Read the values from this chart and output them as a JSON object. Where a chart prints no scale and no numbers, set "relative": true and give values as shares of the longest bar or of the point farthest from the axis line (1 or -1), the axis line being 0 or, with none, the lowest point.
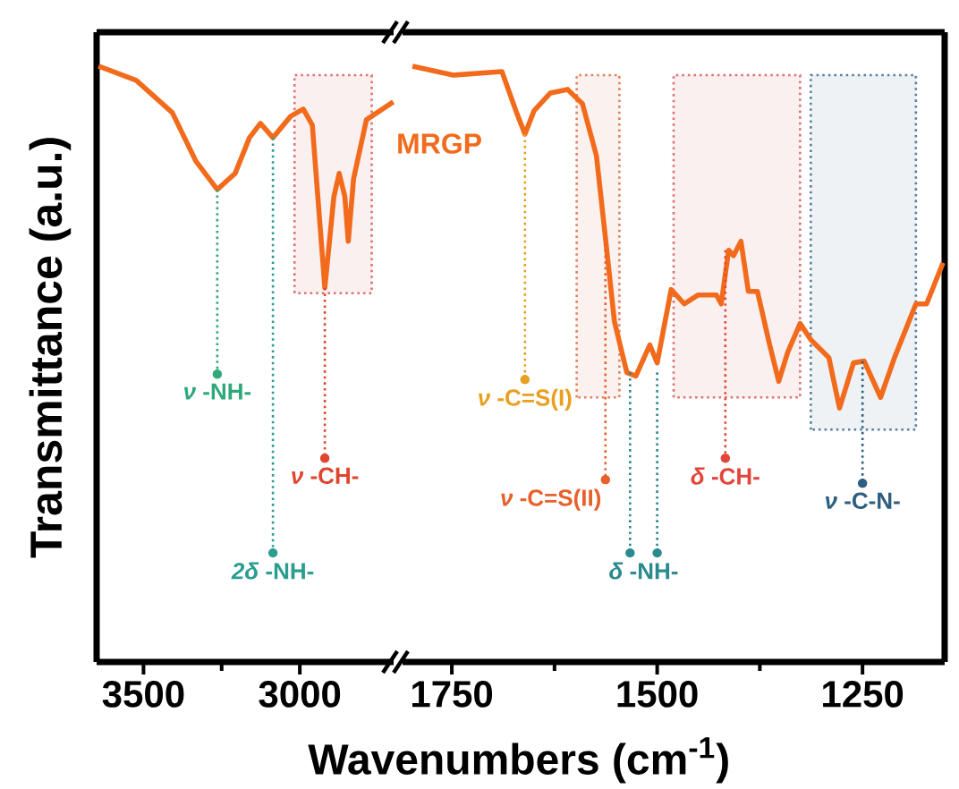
{
  "chart_data": [
    {
      "type": "line",
      "ylabel": "Transmittance (a.u.)",
      "xlim": [
        3650,
        2700
      ],
      "xticks": [
        3500,
        {
          "value": 3250,
          "label": null
        },
        3000
      ],
      "relative": true,
      "tick_labels": "x",
      "series": [
        {
          "color": "#f26b1d",
          "x": [
            3644,
            3523,
            3408,
            3333,
            3264,
            3207,
            3161,
            3126,
            3086,
            3029,
            2989,
            2960,
            2920,
            2891,
            2874,
            2856,
            2845,
            2828,
            2787,
            2701
          ],
          "values": [
            1,
            0.976,
            0.922,
            0.841,
            0.793,
            0.82,
            0.88,
            0.904,
            0.88,
            0.916,
            0.928,
            0.901,
            0.628,
            0.781,
            0.82,
            0.781,
            0.706,
            0.811,
            0.91,
            0.94
          ]
        }
      ],
      "bands": [
        {
          "axis": "x",
          "from": 3017,
          "to": 2770,
          "color": "#e07070"
        }
      ],
      "annotations": [
        {
          "text": "*ν* -NH-",
          "x": 3264,
          "y": 0.793
        },
        {
          "text": "*2δ* -NH-",
          "x": 3086,
          "y": 0.88
        },
        {
          "text": "*ν* -CH-",
          "x": 2920,
          "y": 0.628
        }
      ]
    },
    {
      "type": "line",
      "xlabel": "Wavenumbers (cm$^{-1}$)",
      "xlim": [
        1810,
        1150
      ],
      "xticks": [
        1750,
        {
          "value": 1625,
          "label": null
        },
        1500,
        {
          "value": 1375,
          "label": null
        },
        1250
      ],
      "relative": true,
      "tick_labels": "x",
      "series": [
        {
          "name": "MRGP",
          "color": "#f26b1d",
          "x": [
            1798,
            1748,
            1689,
            1672,
            1661,
            1650,
            1630,
            1609,
            1591,
            1574,
            1563,
            1552,
            1537,
            1526,
            1509,
            1500,
            1483,
            1467,
            1450,
            1428,
            1422,
            1413,
            1407,
            1398,
            1389,
            1378,
            1363,
            1352,
            1341,
            1326,
            1313,
            1291,
            1278,
            1261,
            1248,
            1228,
            1211,
            1185,
            1172,
            1152
          ],
          "values": [
            1,
            0.985,
            0.991,
            0.925,
            0.886,
            0.925,
            0.955,
            0.961,
            0.937,
            0.85,
            0.712,
            0.571,
            0.486,
            0.48,
            0.532,
            0.502,
            0.625,
            0.601,
            0.616,
            0.616,
            0.601,
            0.691,
            0.682,
            0.706,
            0.622,
            0.622,
            0.532,
            0.471,
            0.52,
            0.568,
            0.541,
            0.511,
            0.426,
            0.502,
            0.505,
            0.444,
            0.511,
            0.601,
            0.601,
            0.67
          ]
        }
      ],
      "bands": [
        {
          "axis": "x",
          "from": 1598,
          "to": 1546,
          "color": "#e08060"
        },
        {
          "axis": "x",
          "from": 1480,
          "to": 1326,
          "color": "#e07070"
        },
        {
          "axis": "x",
          "from": 1313,
          "to": 1185,
          "color": "#5a7fa0"
        }
      ],
      "annotations": [
        {
          "text": "*ν* -C=S(I)",
          "x": 1661,
          "y": 0.886
        },
        {
          "text": "*ν* -C=S(II)",
          "x": 1563,
          "y": 0.712
        },
        {
          "text": "*δ* -NH-",
          "x": 1533,
          "y": 0.486
        },
        {
          "text": "*δ* -CH-",
          "x": 1417,
          "y": 0.691
        },
        {
          "text": "*ν* -C-N-",
          "x": 1250,
          "y": 0.505
        }
      ]
    }
  ]
}
